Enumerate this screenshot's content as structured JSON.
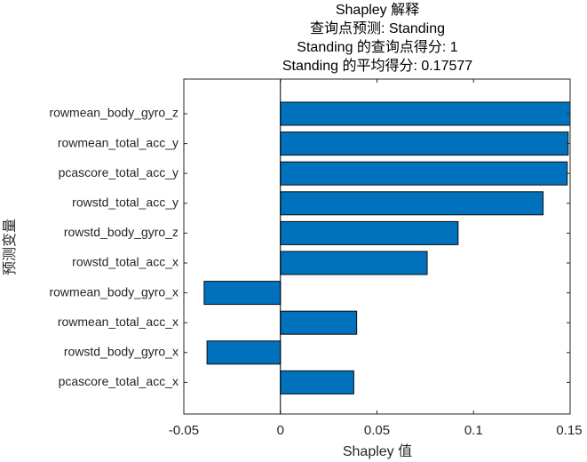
{
  "chart_data": {
    "type": "bar",
    "orientation": "horizontal",
    "title": [
      "Shapley 解释",
      "查询点预测: Standing",
      "Standing 的查询点得分: 1",
      "Standing 的平均得分: 0.17577"
    ],
    "xlabel": "Shapley 值",
    "ylabel": "预测变量",
    "xlim": [
      -0.05,
      0.15
    ],
    "xticks": [
      -0.05,
      0,
      0.05,
      0.1,
      0.15
    ],
    "xtick_labels": [
      "-0.05",
      "0",
      "0.05",
      "0.1",
      "0.15"
    ],
    "categories": [
      "rowmean_body_gyro_z",
      "rowmean_total_acc_y",
      "pcascore_total_acc_y",
      "rowstd_total_acc_y",
      "rowstd_body_gyro_z",
      "rowstd_total_acc_x",
      "rowmean_body_gyro_x",
      "rowmean_total_acc_x",
      "rowstd_body_gyro_x",
      "pcascore_total_acc_x"
    ],
    "values": [
      0.15,
      0.149,
      0.1485,
      0.136,
      0.092,
      0.076,
      -0.0395,
      0.0395,
      -0.038,
      0.038
    ],
    "bar_color": "#0072BD",
    "grid": false
  }
}
